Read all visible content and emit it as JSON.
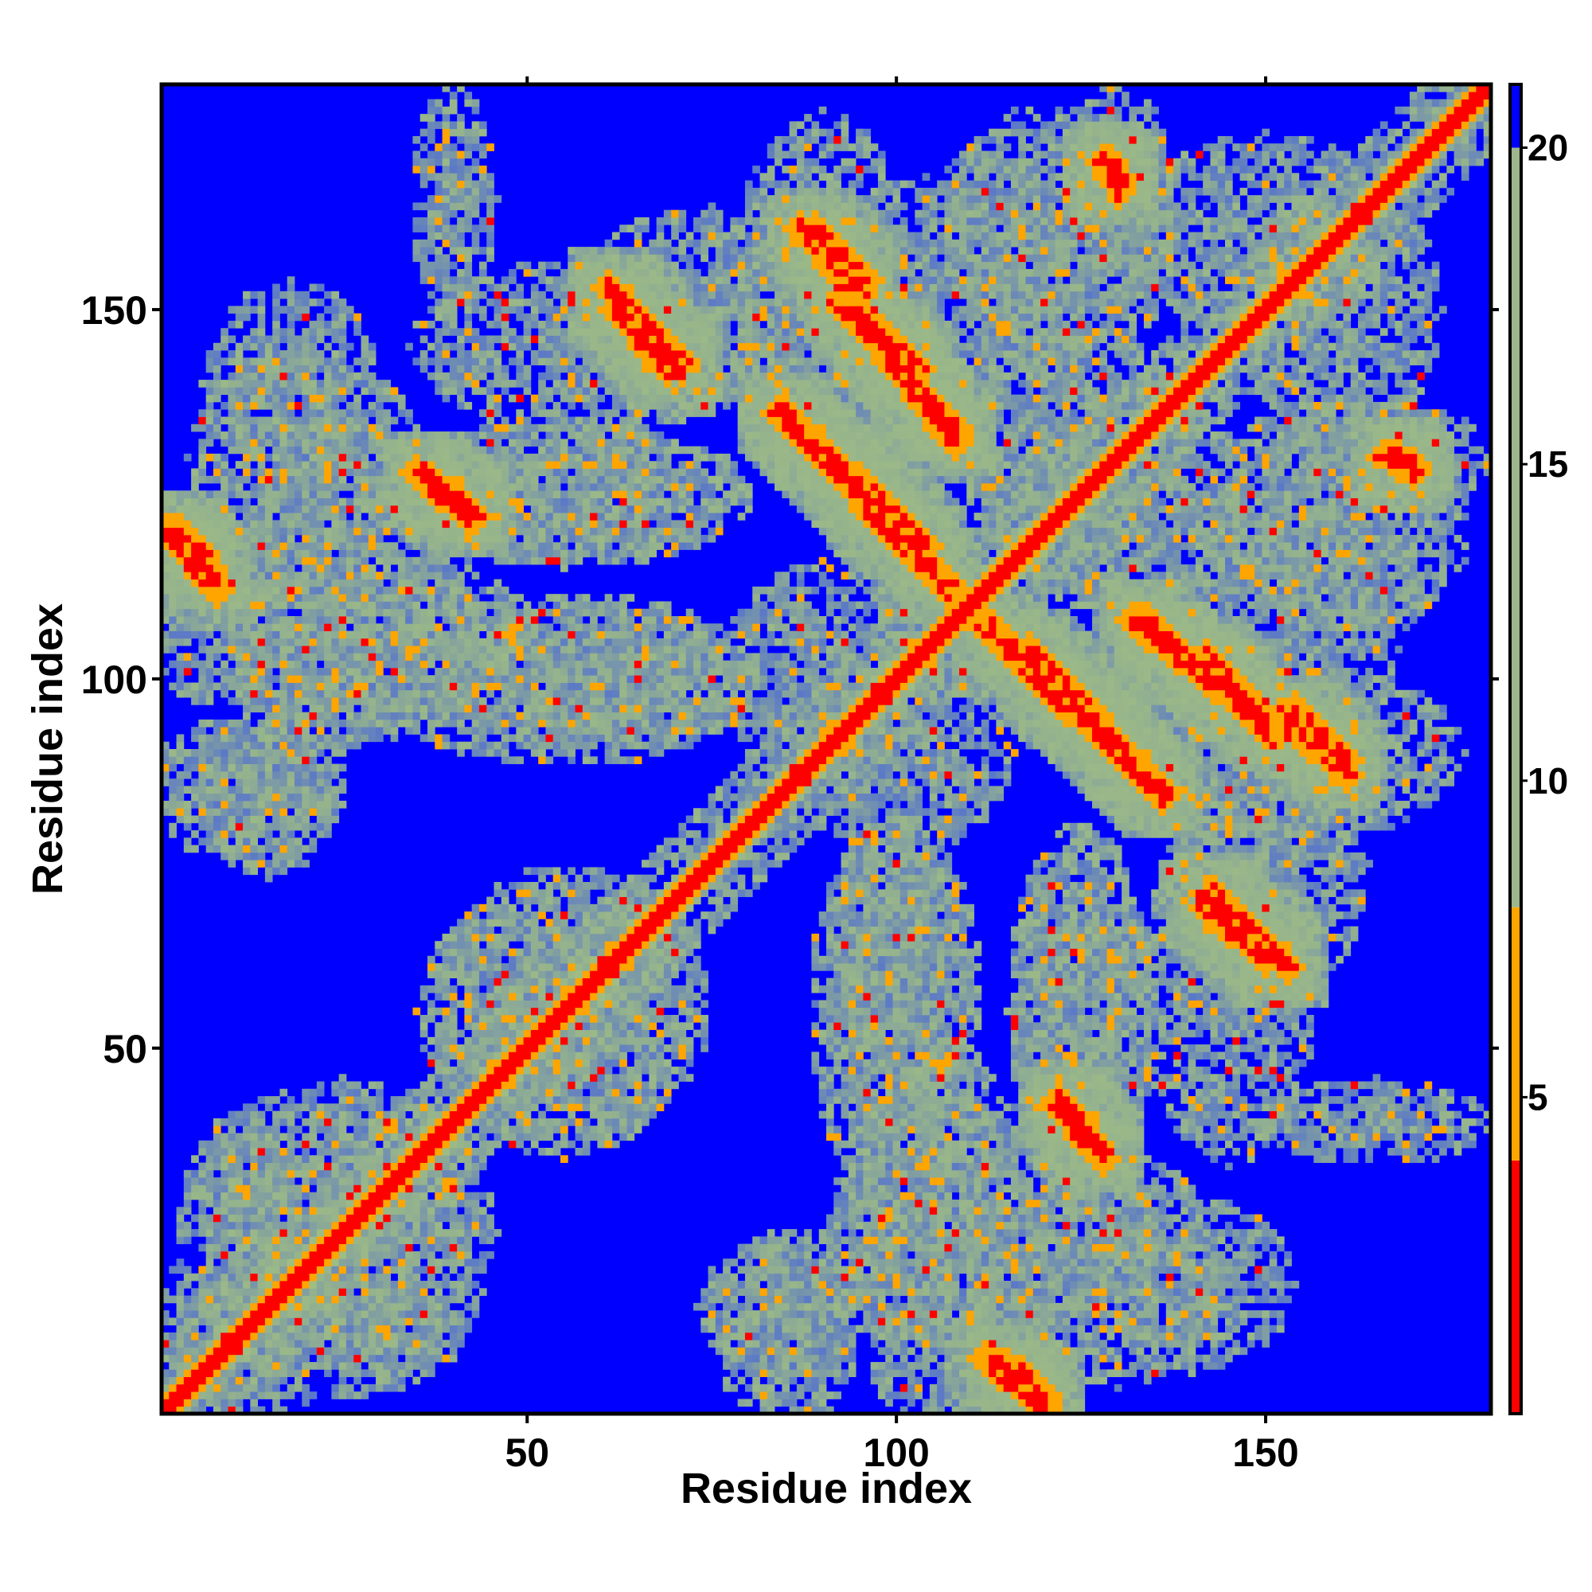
{
  "chart_data": {
    "type": "heatmap",
    "title": "",
    "xlabel": "Residue index",
    "ylabel": "Residue index",
    "xlim": [
      1,
      180
    ],
    "ylim": [
      1,
      180
    ],
    "x_ticks": [
      50,
      100,
      150
    ],
    "y_ticks": [
      50,
      100,
      150
    ],
    "x_tick_labels": [
      "50",
      "100",
      "150"
    ],
    "y_tick_labels": [
      "50",
      "100",
      "150"
    ],
    "colorbar": {
      "range": [
        0,
        21
      ],
      "ticks": [
        5,
        10,
        15,
        20
      ],
      "tick_labels": [
        "5",
        "10",
        "15",
        "20"
      ],
      "segments": [
        {
          "from": 0,
          "to": 4,
          "color": "#ff0000"
        },
        {
          "from": 4,
          "to": 8,
          "color": "#ffa500"
        },
        {
          "from": 8,
          "to": 20,
          "color": "#9db48c"
        },
        {
          "from": 20,
          "to": 21,
          "color": "#0000ff"
        }
      ]
    },
    "background_value": 21,
    "diagonal": {
      "width": 3,
      "value": 2
    },
    "contact_bands": [
      {
        "x1": 62,
        "y1": 150,
        "x2": 70,
        "y2": 141,
        "w": 3,
        "core": 6
      },
      {
        "x1": 89,
        "y1": 161,
        "x2": 95,
        "y2": 154,
        "w": 3,
        "core": 6
      },
      {
        "x1": 92,
        "y1": 151,
        "x2": 103,
        "y2": 142,
        "w": 3,
        "core": 6
      },
      {
        "x1": 103,
        "y1": 139,
        "x2": 108,
        "y2": 133,
        "w": 3,
        "core": 6
      },
      {
        "x1": 84,
        "y1": 136,
        "x2": 104,
        "y2": 118,
        "w": 3,
        "core": 6
      },
      {
        "x1": 35,
        "y1": 128,
        "x2": 43,
        "y2": 122,
        "w": 3,
        "core": 6
      },
      {
        "x1": 2,
        "y1": 120,
        "x2": 7,
        "y2": 115,
        "w": 3,
        "core": 6
      },
      {
        "x1": 112,
        "y1": 107,
        "x2": 136,
        "y2": 84,
        "w": 3,
        "core": 6
      },
      {
        "x1": 132,
        "y1": 108,
        "x2": 150,
        "y2": 94,
        "w": 3,
        "core": 6
      },
      {
        "x1": 152,
        "y1": 95,
        "x2": 161,
        "y2": 87,
        "w": 3,
        "core": 6
      },
      {
        "x1": 142,
        "y1": 71,
        "x2": 153,
        "y2": 61,
        "w": 3,
        "core": 6
      },
      {
        "x1": 122,
        "y1": 42,
        "x2": 127,
        "y2": 36,
        "w": 3,
        "core": 6
      },
      {
        "x1": 112,
        "y1": 8,
        "x2": 120,
        "y2": 1,
        "w": 3,
        "core": 6
      },
      {
        "x1": 128,
        "y1": 170,
        "x2": 130,
        "y2": 167,
        "w": 3,
        "core": 6
      },
      {
        "x1": 166,
        "y1": 130,
        "x2": 170,
        "y2": 129,
        "w": 3,
        "core": 6
      }
    ],
    "halo_regions": [
      {
        "cx": 58,
        "cy": 145,
        "rx": 24,
        "ry": 12
      },
      {
        "cx": 90,
        "cy": 155,
        "rx": 12,
        "ry": 22
      },
      {
        "cx": 120,
        "cy": 160,
        "rx": 14,
        "ry": 18
      },
      {
        "cx": 150,
        "cy": 160,
        "rx": 18,
        "ry": 14
      },
      {
        "cx": 55,
        "cy": 125,
        "rx": 22,
        "ry": 10
      },
      {
        "cx": 20,
        "cy": 130,
        "rx": 16,
        "ry": 14
      },
      {
        "cx": 8,
        "cy": 110,
        "rx": 10,
        "ry": 14
      },
      {
        "cx": 30,
        "cy": 105,
        "rx": 22,
        "ry": 12
      },
      {
        "cx": 60,
        "cy": 100,
        "rx": 22,
        "ry": 10
      },
      {
        "cx": 12,
        "cy": 85,
        "rx": 14,
        "ry": 10
      },
      {
        "cx": 55,
        "cy": 55,
        "rx": 20,
        "ry": 18
      },
      {
        "cx": 25,
        "cy": 30,
        "rx": 20,
        "ry": 16
      },
      {
        "cx": 20,
        "cy": 12,
        "rx": 22,
        "ry": 10
      },
      {
        "cx": 100,
        "cy": 55,
        "rx": 12,
        "ry": 26
      },
      {
        "cx": 125,
        "cy": 55,
        "rx": 10,
        "ry": 26
      },
      {
        "cx": 110,
        "cy": 25,
        "rx": 20,
        "ry": 18
      },
      {
        "cx": 85,
        "cy": 15,
        "rx": 12,
        "ry": 10
      },
      {
        "cx": 140,
        "cy": 18,
        "rx": 14,
        "ry": 12
      },
      {
        "cx": 150,
        "cy": 75,
        "rx": 14,
        "ry": 20
      },
      {
        "cx": 155,
        "cy": 110,
        "rx": 16,
        "ry": 14
      },
      {
        "cx": 163,
        "cy": 130,
        "rx": 18,
        "ry": 8
      },
      {
        "cx": 100,
        "cy": 90,
        "rx": 16,
        "ry": 14
      },
      {
        "cx": 130,
        "cy": 125,
        "rx": 18,
        "ry": 16
      },
      {
        "cx": 165,
        "cy": 40,
        "rx": 16,
        "ry": 6
      }
    ]
  }
}
